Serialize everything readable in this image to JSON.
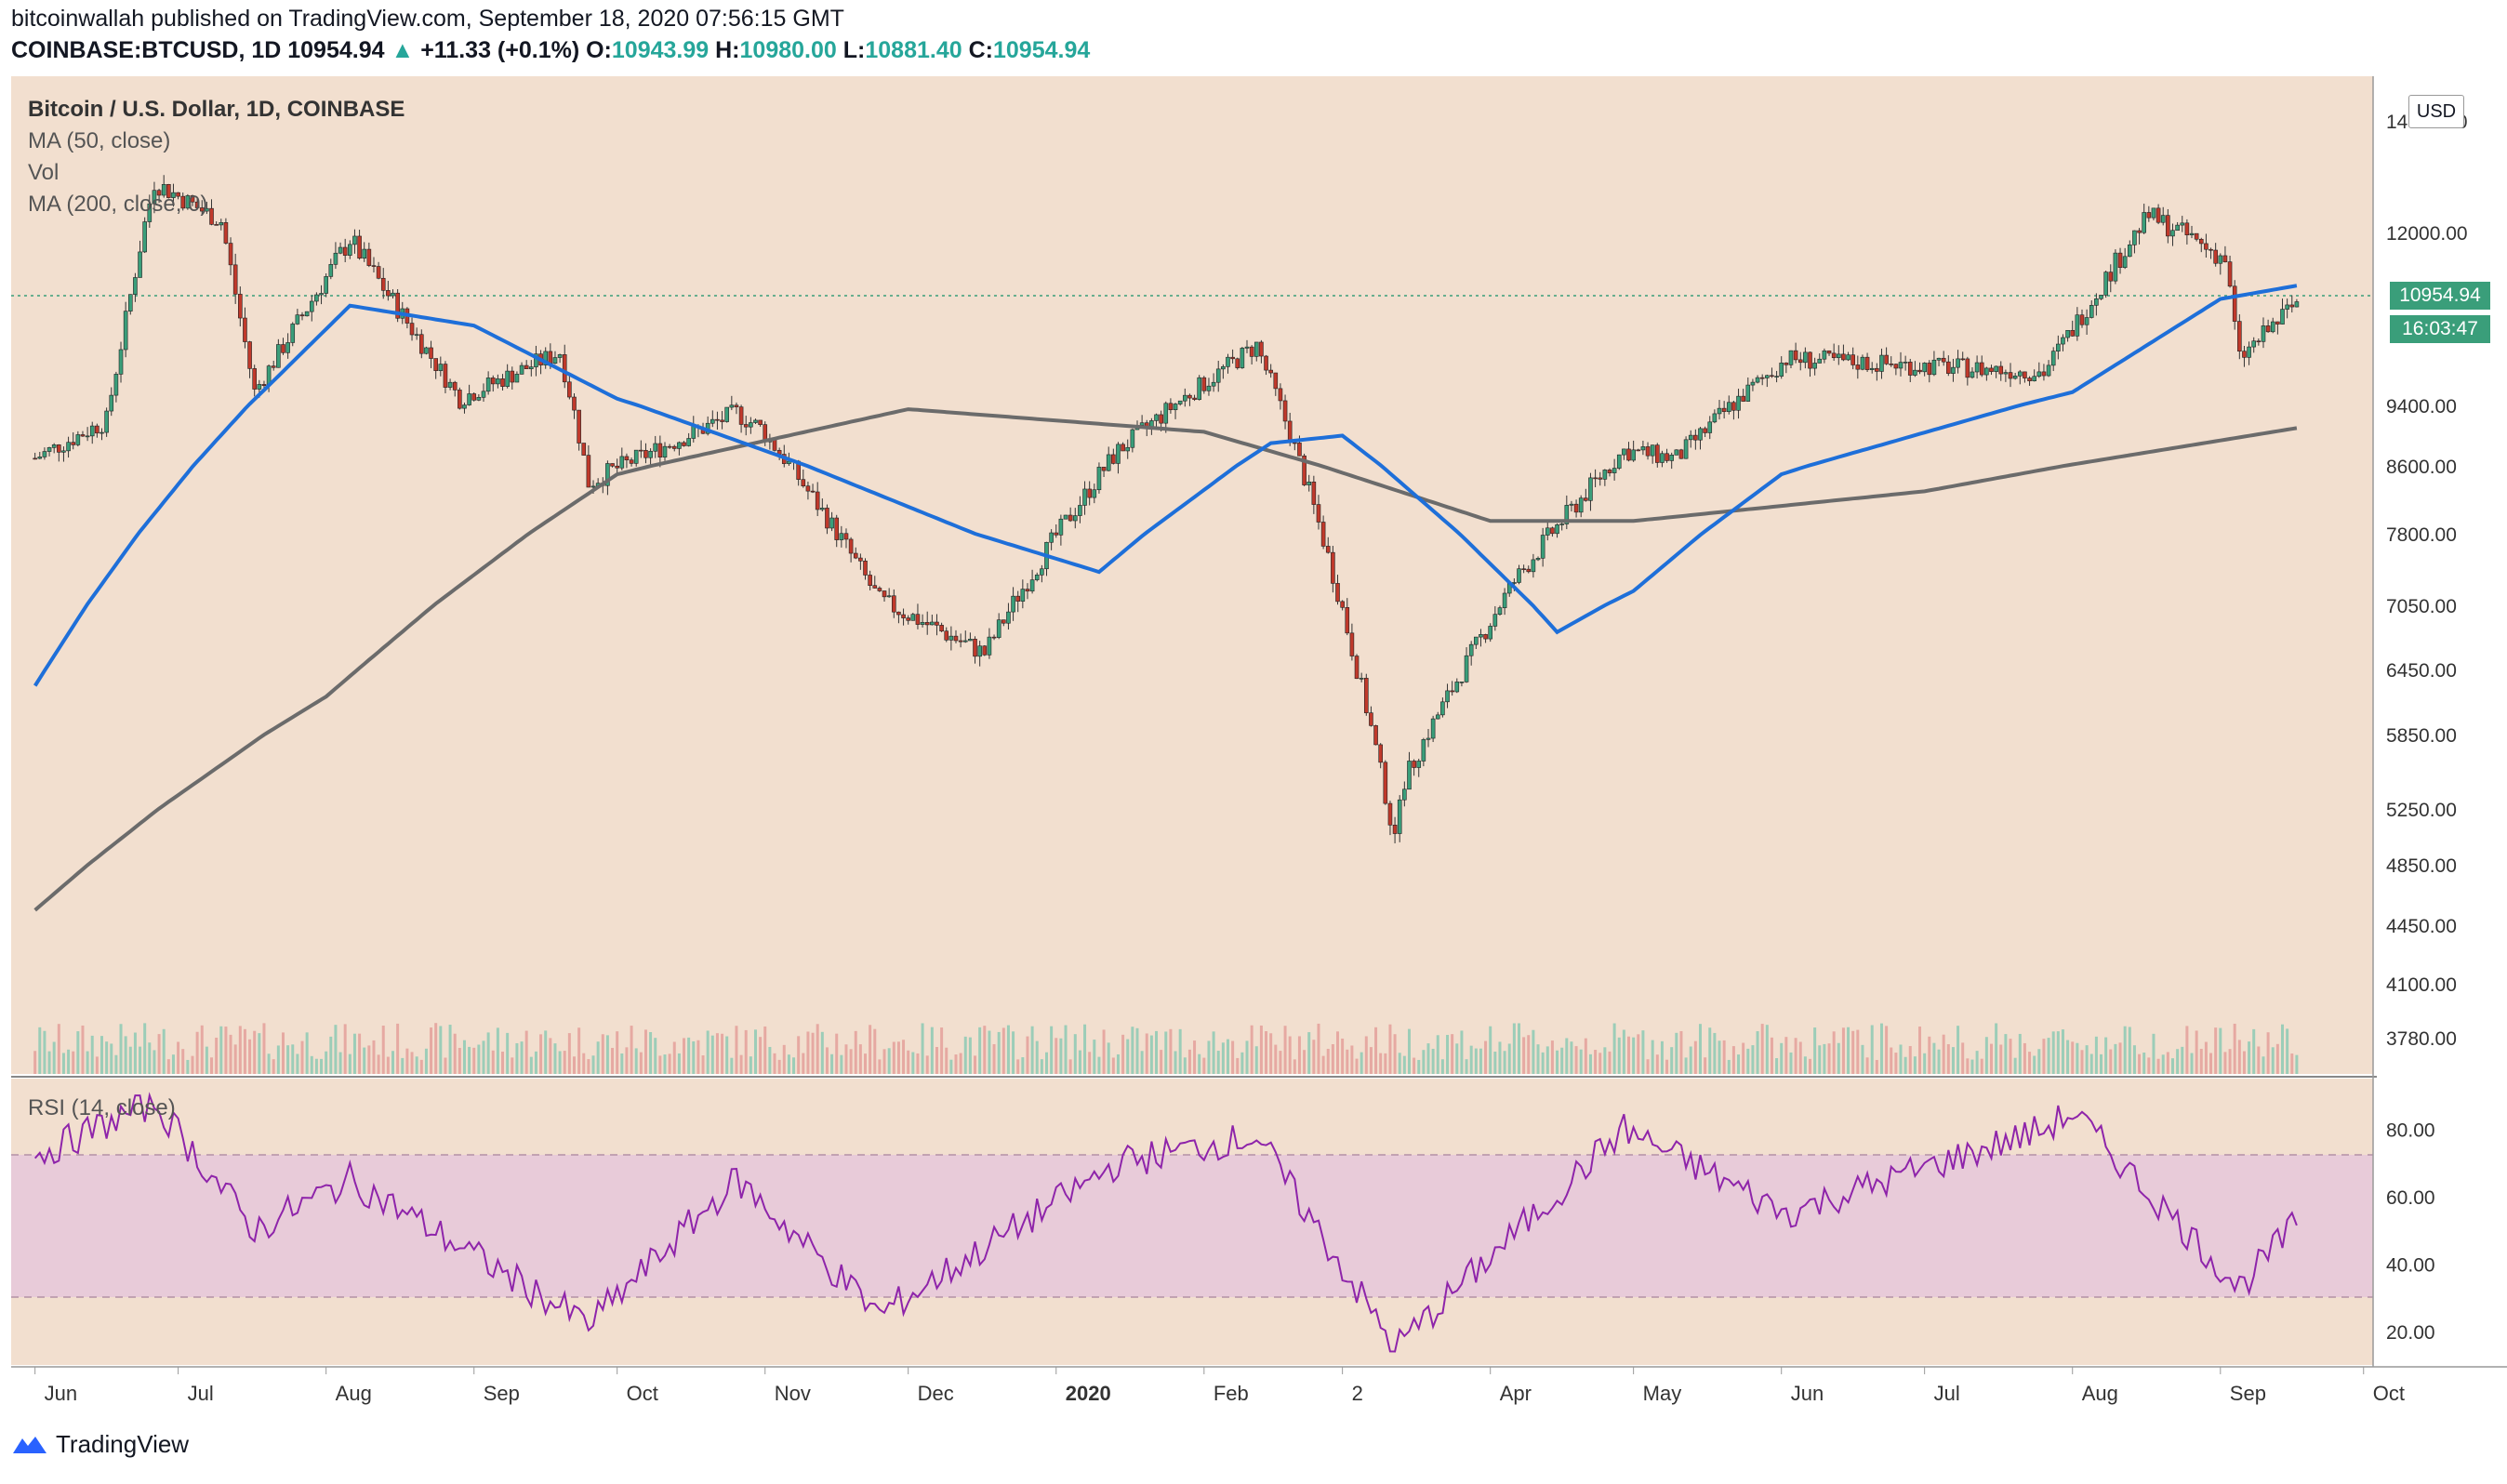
{
  "header": {
    "line1": "bitcoinwallah published on TradingView.com, September 18, 2020 07:56:15 GMT",
    "symbol": "COINBASE:BTCUSD, 1D",
    "last": "10954.94",
    "change": "+11.33 (+0.1%)",
    "o_label": "O:",
    "o_value": "10943.99",
    "h_label": "H:",
    "h_value": "10980.00",
    "l_label": "L:",
    "l_value": "10881.40",
    "c_label": "C:",
    "c_value": "10954.94"
  },
  "legend": {
    "title": "Bitcoin / U.S. Dollar, 1D, COINBASE",
    "ma50": "MA (50, close)",
    "vol": "Vol",
    "ma200": "MA (200, close, 0)",
    "rsi": "RSI (14, close)"
  },
  "scale": {
    "currency": "USD",
    "price_tag": "10954.94",
    "countdown": "16:03:47"
  },
  "footer": {
    "brand": "TradingView"
  },
  "colors": {
    "background": "#f2dfcf",
    "up": "#3a9e7a",
    "down": "#c0392b",
    "ma50": "#1e6fd9",
    "ma200": "#6b6b6b",
    "rsi": "#8e24aa",
    "rsi_band": "#e8cbd9"
  },
  "chart_data": {
    "type": "line",
    "title": "Bitcoin / U.S. Dollar, 1D, COINBASE",
    "price_axis_ticks": [
      14000.0,
      12000.0,
      10954.94,
      9400.0,
      8600.0,
      7800.0,
      7050.0,
      6450.0,
      5850.0,
      5250.0,
      4850.0,
      4450.0,
      4100.0,
      3780.0
    ],
    "rsi_axis_ticks": [
      80.0,
      60.0,
      40.0,
      20.0
    ],
    "rsi_band": [
      30,
      70
    ],
    "x_ticks": [
      "Jun",
      "Jul",
      "Aug",
      "Sep",
      "Oct",
      "Nov",
      "Dec",
      "2020",
      "Feb",
      "2",
      "Apr",
      "May",
      "Jun",
      "Jul",
      "Aug",
      "Sep",
      "Oct"
    ],
    "series": [
      {
        "name": "BTCUSD",
        "x": [
          "2019-06-01",
          "2019-06-16",
          "2019-06-26",
          "2019-07-10",
          "2019-07-17",
          "2019-08-06",
          "2019-08-29",
          "2019-09-19",
          "2019-09-25",
          "2019-10-26",
          "2019-10-31",
          "2019-11-25",
          "2019-12-17",
          "2020-01-14",
          "2020-02-12",
          "2020-03-12",
          "2020-03-13",
          "2020-04-06",
          "2020-04-29",
          "2020-05-10",
          "2020-06-02",
          "2020-07-26",
          "2020-08-17",
          "2020-09-02",
          "2020-09-05",
          "2020-09-17"
        ],
        "values": [
          8700,
          9200,
          12900,
          12200,
          9600,
          11900,
          9500,
          10200,
          8400,
          9300,
          9100,
          7100,
          6600,
          8800,
          10300,
          5000,
          5400,
          7300,
          8800,
          8700,
          10100,
          9900,
          12300,
          11600,
          10100,
          10954.94
        ]
      },
      {
        "name": "MA (50, close)",
        "x": [
          "2019-06-01",
          "2019-07-20",
          "2019-08-06",
          "2019-09-01",
          "2019-10-01",
          "2019-11-01",
          "2019-12-15",
          "2020-01-10",
          "2020-02-15",
          "2020-03-01",
          "2020-04-15",
          "2020-05-01",
          "2020-06-01",
          "2020-08-01",
          "2020-09-01",
          "2020-09-17"
        ],
        "values": [
          6300,
          9700,
          10900,
          10600,
          9500,
          8800,
          7800,
          7400,
          8900,
          9000,
          6800,
          7200,
          8500,
          9600,
          11000,
          11200
        ]
      },
      {
        "name": "MA (200, close, 0)",
        "x": [
          "2019-06-01",
          "2019-08-01",
          "2019-10-01",
          "2019-12-01",
          "2020-02-01",
          "2020-04-01",
          "2020-05-01",
          "2020-07-01",
          "2020-09-17"
        ],
        "values": [
          4550,
          6200,
          8500,
          9350,
          9050,
          7950,
          7950,
          8300,
          9100
        ]
      },
      {
        "name": "RSI (14, close)",
        "x": [
          "2019-06-01",
          "2019-06-26",
          "2019-07-17",
          "2019-08-06",
          "2019-09-25",
          "2019-10-26",
          "2019-11-25",
          "2020-01-14",
          "2020-02-12",
          "2020-03-12",
          "2020-04-29",
          "2020-06-02",
          "2020-07-26",
          "2020-08-01",
          "2020-09-05",
          "2020-09-17"
        ],
        "values": [
          72,
          88,
          50,
          65,
          22,
          65,
          25,
          70,
          78,
          15,
          80,
          55,
          80,
          85,
          33,
          52
        ]
      }
    ],
    "ylim": [
      3600,
      14600
    ],
    "rsi_ylim": [
      10,
      95
    ],
    "grid": false
  }
}
